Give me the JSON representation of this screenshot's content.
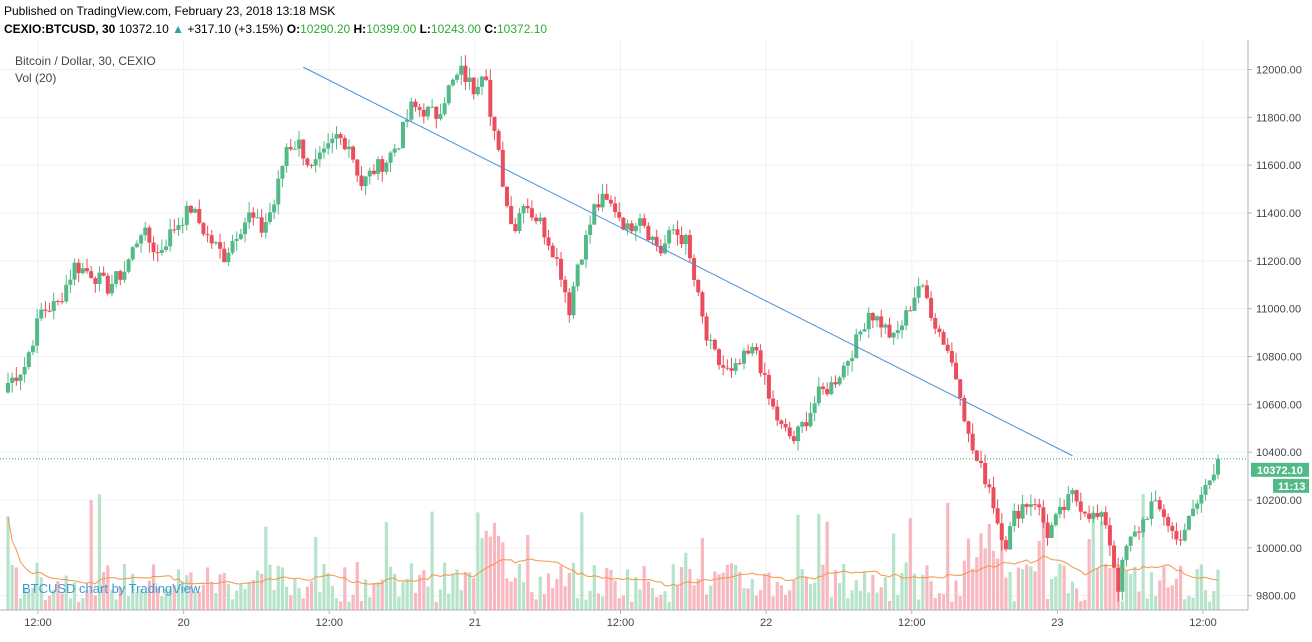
{
  "header": {
    "published": "Published on TradingView.com, February 23, 2018 13:18 MSK",
    "symbol": "CEXIO:BTCUSD, 30",
    "last": "10372.10",
    "up_arrow": "▲",
    "change": "+317.10 (+3.15%)",
    "o_label": "O:",
    "o_val": "10290.20",
    "h_label": "H:",
    "h_val": "10399.00",
    "l_label": "L:",
    "l_val": "10243.00",
    "c_label": "C:",
    "c_val": "10372.10"
  },
  "colors": {
    "up": "#53b987",
    "down": "#eb4d5c",
    "vol_up": "#b6e3c9",
    "vol_down": "#f7b9bf",
    "trendline": "#4a90d9",
    "ma": "#f39548",
    "grid": "#eef0f3",
    "price_line": "#2ea062",
    "price_badge": "#53b987"
  },
  "chart_data": {
    "type": "candlestick",
    "title": "Bitcoin / Dollar, 30, CEXIO",
    "volume_label": "Vol (20)",
    "watermark": "BTCUSD chart by TradingView",
    "ylim": [
      9740,
      12090
    ],
    "y_ticks": [
      9800,
      10000,
      10200,
      10400,
      10600,
      10800,
      11000,
      11200,
      11400,
      11600,
      11800,
      12000
    ],
    "y_tick_labels": [
      "9800.00",
      "10000.00",
      "10200.00",
      "10400.00",
      "10600.00",
      "10800.00",
      "11000.00",
      "11200.00",
      "11400.00",
      "11600.00",
      "11800.00",
      "12000.00"
    ],
    "x_ticks": [
      "12:00",
      "20",
      "12:00",
      "21",
      "12:00",
      "22",
      "12:00",
      "23",
      "12:00"
    ],
    "last_price": 10372.1,
    "last_price_label": "10372.10",
    "countdown": "11:13",
    "trendline": {
      "from": {
        "bar": 71,
        "price": 12010
      },
      "to": {
        "bar": 256,
        "price": 10385
      }
    },
    "ohlc_anchors": [
      [
        0,
        10690
      ],
      [
        4,
        10760
      ],
      [
        8,
        10990
      ],
      [
        12,
        11020
      ],
      [
        16,
        11180
      ],
      [
        20,
        11150
      ],
      [
        24,
        11090
      ],
      [
        28,
        11160
      ],
      [
        32,
        11330
      ],
      [
        36,
        11230
      ],
      [
        40,
        11340
      ],
      [
        44,
        11420
      ],
      [
        48,
        11300
      ],
      [
        52,
        11220
      ],
      [
        55,
        11320
      ],
      [
        58,
        11390
      ],
      [
        61,
        11330
      ],
      [
        64,
        11440
      ],
      [
        67,
        11680
      ],
      [
        70,
        11690
      ],
      [
        73,
        11580
      ],
      [
        76,
        11640
      ],
      [
        79,
        11720
      ],
      [
        82,
        11690
      ],
      [
        85,
        11520
      ],
      [
        88,
        11580
      ],
      [
        91,
        11620
      ],
      [
        94,
        11700
      ],
      [
        97,
        11840
      ],
      [
        100,
        11830
      ],
      [
        103,
        11810
      ],
      [
        106,
        11920
      ],
      [
        109,
        11990
      ],
      [
        112,
        11920
      ],
      [
        114,
        12000
      ],
      [
        115,
        11990
      ],
      [
        116,
        11800
      ],
      [
        118,
        11640
      ],
      [
        120,
        11430
      ],
      [
        122,
        11340
      ],
      [
        124,
        11460
      ],
      [
        126,
        11400
      ],
      [
        128,
        11360
      ],
      [
        131,
        11250
      ],
      [
        133,
        11150
      ],
      [
        135,
        11000
      ],
      [
        137,
        11190
      ],
      [
        139,
        11290
      ],
      [
        141,
        11420
      ],
      [
        143,
        11450
      ],
      [
        146,
        11420
      ],
      [
        149,
        11330
      ],
      [
        152,
        11400
      ],
      [
        154,
        11320
      ],
      [
        157,
        11240
      ],
      [
        160,
        11330
      ],
      [
        163,
        11280
      ],
      [
        166,
        11040
      ],
      [
        168,
        10870
      ],
      [
        171,
        10770
      ],
      [
        174,
        10720
      ],
      [
        177,
        10790
      ],
      [
        180,
        10830
      ],
      [
        183,
        10620
      ],
      [
        186,
        10500
      ],
      [
        189,
        10450
      ],
      [
        192,
        10540
      ],
      [
        195,
        10640
      ],
      [
        198,
        10680
      ],
      [
        201,
        10760
      ],
      [
        204,
        10860
      ],
      [
        207,
        10990
      ],
      [
        210,
        10940
      ],
      [
        213,
        10870
      ],
      [
        216,
        10970
      ],
      [
        219,
        11100
      ],
      [
        221,
        11040
      ],
      [
        223,
        10940
      ],
      [
        226,
        10830
      ],
      [
        229,
        10660
      ],
      [
        231,
        10460
      ],
      [
        233,
        10360
      ],
      [
        236,
        10260
      ],
      [
        238,
        10110
      ],
      [
        240,
        10020
      ],
      [
        242,
        10130
      ],
      [
        244,
        10180
      ],
      [
        247,
        10200
      ],
      [
        250,
        10060
      ],
      [
        253,
        10140
      ],
      [
        256,
        10220
      ],
      [
        258,
        10180
      ],
      [
        261,
        10130
      ],
      [
        264,
        10110
      ],
      [
        267,
        9840
      ],
      [
        269,
        10000
      ],
      [
        272,
        10080
      ],
      [
        275,
        10180
      ],
      [
        278,
        10140
      ],
      [
        281,
        10030
      ],
      [
        284,
        10110
      ],
      [
        287,
        10220
      ],
      [
        289,
        10290
      ],
      [
        291,
        10380
      ]
    ]
  }
}
